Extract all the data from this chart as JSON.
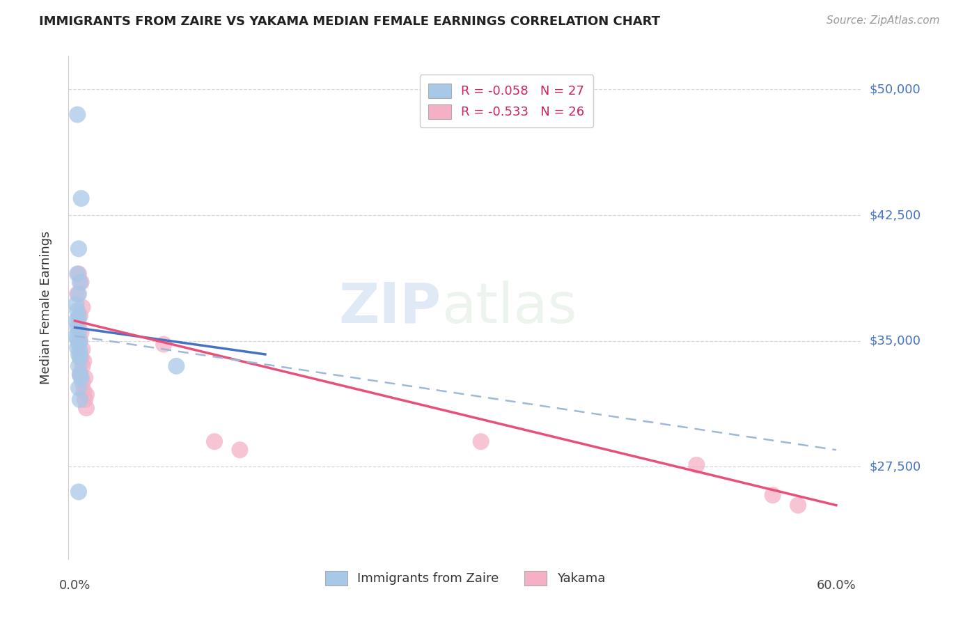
{
  "title": "IMMIGRANTS FROM ZAIRE VS YAKAMA MEDIAN FEMALE EARNINGS CORRELATION CHART",
  "source": "Source: ZipAtlas.com",
  "ylabel": "Median Female Earnings",
  "yticks": [
    27500,
    35000,
    42500,
    50000
  ],
  "ytick_labels": [
    "$27,500",
    "$35,000",
    "$42,500",
    "$50,000"
  ],
  "legend1_label": "R = -0.058   N = 27",
  "legend2_label": "R = -0.533   N = 26",
  "legend_bottom1": "Immigrants from Zaire",
  "legend_bottom2": "Yakama",
  "blue_color": "#a8c8e8",
  "pink_color": "#f5b0c5",
  "blue_line_color": "#4472c4",
  "pink_line_color": "#e8507a",
  "dash_line_color": "#a0b8d8",
  "blue_scatter": [
    [
      0.002,
      48500
    ],
    [
      0.005,
      43500
    ],
    [
      0.003,
      40500
    ],
    [
      0.002,
      39000
    ],
    [
      0.004,
      38500
    ],
    [
      0.003,
      37800
    ],
    [
      0.001,
      37200
    ],
    [
      0.002,
      36800
    ],
    [
      0.003,
      36400
    ],
    [
      0.001,
      36200
    ],
    [
      0.002,
      35800
    ],
    [
      0.003,
      35500
    ],
    [
      0.001,
      35300
    ],
    [
      0.002,
      35100
    ],
    [
      0.004,
      35000
    ],
    [
      0.003,
      34800
    ],
    [
      0.002,
      34600
    ],
    [
      0.004,
      34400
    ],
    [
      0.003,
      34200
    ],
    [
      0.004,
      34000
    ],
    [
      0.003,
      33500
    ],
    [
      0.004,
      33000
    ],
    [
      0.005,
      32800
    ],
    [
      0.003,
      32200
    ],
    [
      0.004,
      31500
    ],
    [
      0.08,
      33500
    ],
    [
      0.003,
      26000
    ]
  ],
  "pink_scatter": [
    [
      0.003,
      39000
    ],
    [
      0.005,
      38500
    ],
    [
      0.002,
      37800
    ],
    [
      0.006,
      37000
    ],
    [
      0.004,
      36500
    ],
    [
      0.003,
      36000
    ],
    [
      0.005,
      35500
    ],
    [
      0.004,
      35000
    ],
    [
      0.006,
      34500
    ],
    [
      0.005,
      34000
    ],
    [
      0.007,
      33800
    ],
    [
      0.006,
      33500
    ],
    [
      0.004,
      33000
    ],
    [
      0.008,
      32800
    ],
    [
      0.006,
      32500
    ],
    [
      0.007,
      32000
    ],
    [
      0.009,
      31800
    ],
    [
      0.008,
      31500
    ],
    [
      0.009,
      31000
    ],
    [
      0.07,
      34800
    ],
    [
      0.11,
      29000
    ],
    [
      0.13,
      28500
    ],
    [
      0.32,
      29000
    ],
    [
      0.49,
      27600
    ],
    [
      0.55,
      25800
    ],
    [
      0.57,
      25200
    ]
  ],
  "xmin": -0.005,
  "xmax": 0.62,
  "ymin": 22000,
  "ymax": 52000,
  "blue_line_x": [
    0.0,
    0.15
  ],
  "blue_line_y": [
    35800,
    34200
  ],
  "pink_line_x": [
    0.0,
    0.6
  ],
  "pink_line_y": [
    36200,
    25200
  ],
  "dash_line_x": [
    0.0,
    0.6
  ],
  "dash_line_y": [
    35300,
    28500
  ],
  "watermark_zip": "ZIP",
  "watermark_atlas": "atlas"
}
